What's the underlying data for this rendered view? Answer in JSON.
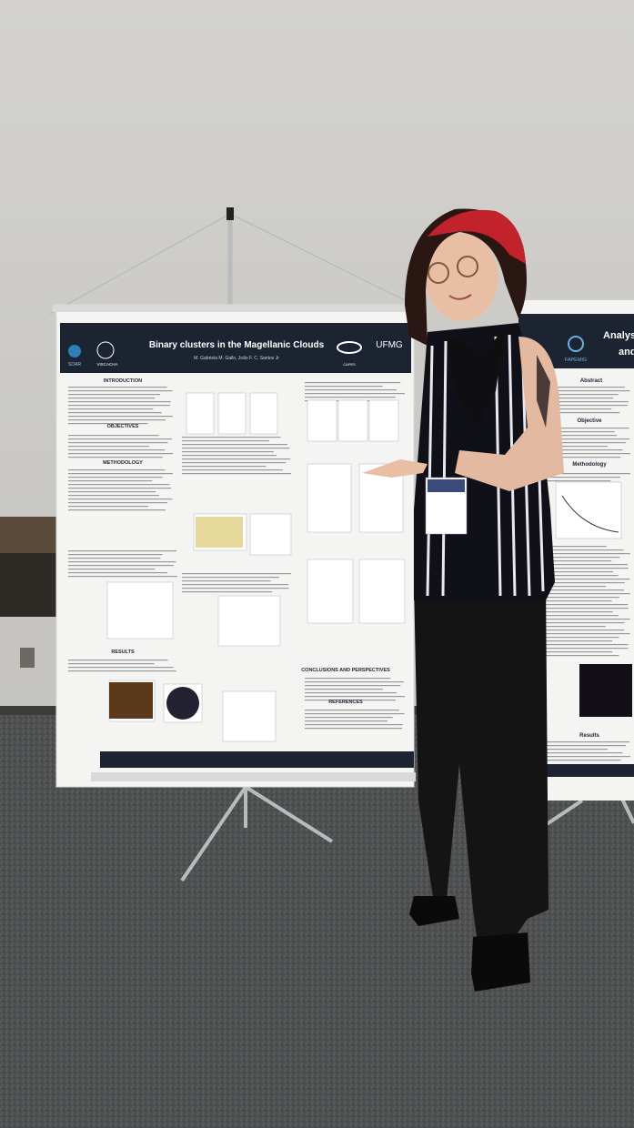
{
  "left_poster": {
    "title": "Binary clusters in the Magellanic Clouds",
    "authors": "M. Gabriela M. Gallo, João F. C. Santos Jr",
    "logos": [
      "SOAR",
      "VISCACHA",
      "CAPES",
      "UFMG"
    ],
    "sections": [
      "INTRODUCTION",
      "OBJECTIVES",
      "METHODOLOGY",
      "RESULTS",
      "CONCLUSIONS AND PERSPECTIVES",
      "REFERENCES"
    ]
  },
  "right_poster": {
    "title": "Analysis",
    "title_line2": "and",
    "logo": "FAPEMIG",
    "sections": [
      "Abstract",
      "Objective",
      "Methodology",
      "Results"
    ]
  }
}
